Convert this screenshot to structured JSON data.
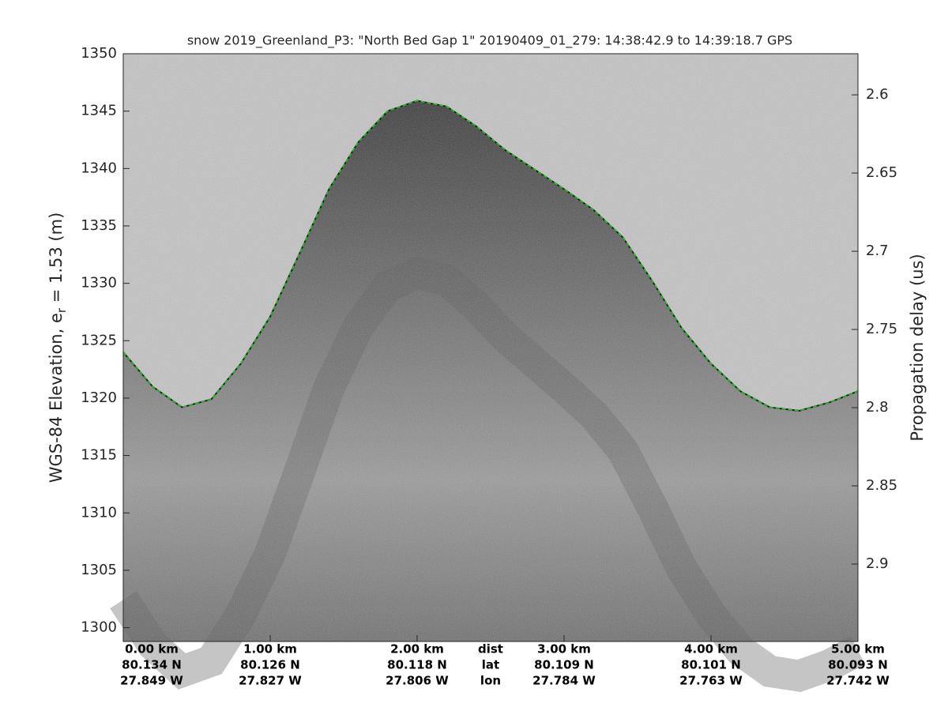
{
  "chart_data": {
    "type": "echogram",
    "title": "snow 2019_Greenland_P3: \"North Bed Gap 1\"  20190409_01_279: 14:38:42.9 to 14:39:18.7 GPS",
    "ylabel": "WGS-84 Elevation, e",
    "ylabel_sub": "r",
    "ylabel_rest": " = 1.53 (m)",
    "y2label": "Propagation delay (us)",
    "xrow_labels": [
      "dist",
      "lat",
      "lon"
    ],
    "xlim": [
      0,
      5
    ],
    "xticks": [
      {
        "value": 0,
        "label": "0.00 km",
        "lat": "80.134 N",
        "lon": "27.849 W"
      },
      {
        "value": 1,
        "label": "1.00 km",
        "lat": "80.126 N",
        "lon": "27.827 W"
      },
      {
        "value": 2,
        "label": "2.00 km",
        "lat": "80.118 N",
        "lon": "27.806 W"
      },
      {
        "value": 3,
        "label": "3.00 km",
        "lat": "80.109 N",
        "lon": "27.784 W"
      },
      {
        "value": 4,
        "label": "4.00 km",
        "lat": "80.101 N",
        "lon": "27.763 W"
      },
      {
        "value": 5,
        "label": "5.00 km",
        "lat": "80.093 N",
        "lon": "27.742 W"
      }
    ],
    "ylim": [
      1298.8,
      1350
    ],
    "yticks": [
      1300,
      1305,
      1310,
      1315,
      1320,
      1325,
      1330,
      1335,
      1340,
      1345,
      1350
    ],
    "y2lim": [
      2.9495,
      2.5737
    ],
    "y2ticks": [
      2.6,
      2.65,
      2.7,
      2.75,
      2.8,
      2.85,
      2.9
    ],
    "series": [
      {
        "name": "surface",
        "color": "#22cc22",
        "x": [
          0,
          0.2,
          0.4,
          0.6,
          0.8,
          1.0,
          1.2,
          1.4,
          1.6,
          1.8,
          2.0,
          2.2,
          2.4,
          2.6,
          2.8,
          3.0,
          3.2,
          3.4,
          3.6,
          3.8,
          4.0,
          4.2,
          4.4,
          4.6,
          4.8,
          5.0
        ],
        "values": [
          1324.0,
          1321.0,
          1319.2,
          1319.9,
          1323.0,
          1327.1,
          1332.6,
          1338.2,
          1342.3,
          1345.0,
          1345.9,
          1345.4,
          1343.7,
          1341.6,
          1339.9,
          1338.2,
          1336.4,
          1334.0,
          1330.2,
          1326.1,
          1323.0,
          1320.6,
          1319.2,
          1318.9,
          1319.6,
          1320.6
        ]
      }
    ]
  }
}
